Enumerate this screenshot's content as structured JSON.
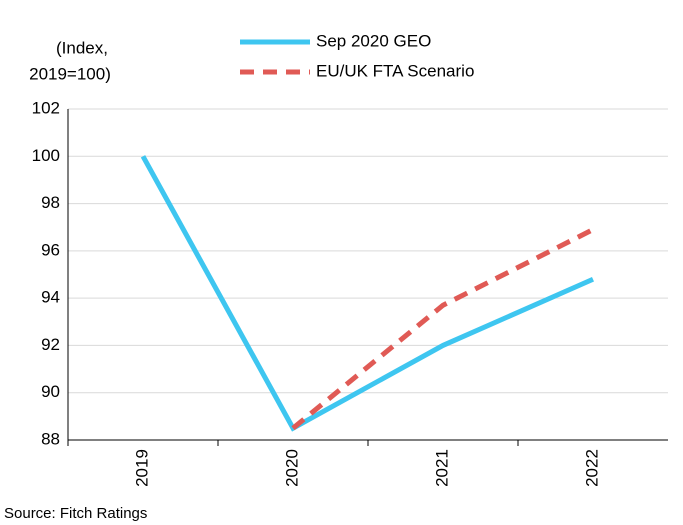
{
  "chart_data": {
    "type": "line",
    "y_label": [
      "(Index,",
      "2019=100)"
    ],
    "source": "Source: Fitch Ratings",
    "categories": [
      "2019",
      "2020",
      "2021",
      "2022"
    ],
    "series": [
      {
        "name": "Sep 2020 GEO",
        "color": "#3ec6f0",
        "dash": false,
        "values": [
          100,
          88.5,
          92.0,
          94.8
        ]
      },
      {
        "name": "EU/UK FTA Scenario",
        "color": "#e05a55",
        "dash": true,
        "values": [
          null,
          88.5,
          93.7,
          96.9
        ]
      }
    ],
    "ylim": [
      88,
      102
    ],
    "yticks": [
      88,
      90,
      92,
      94,
      96,
      98,
      100,
      102
    ],
    "grid": true
  }
}
